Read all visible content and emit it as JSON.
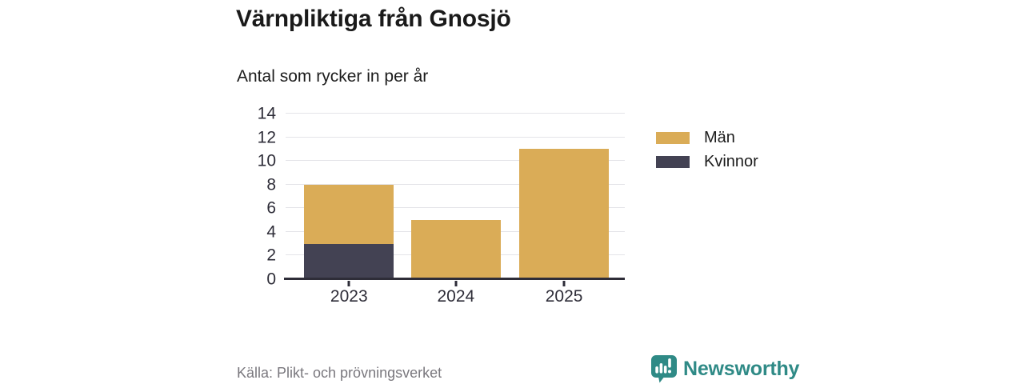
{
  "chart_data": {
    "type": "bar",
    "stacked": true,
    "title": "Värnpliktiga från Gnosjö",
    "subtitle": "Antal som rycker in per år",
    "categories": [
      "2023",
      "2024",
      "2025"
    ],
    "series": [
      {
        "name": "Män",
        "color": "#DAAC57",
        "values": [
          5,
          5,
          11
        ]
      },
      {
        "name": "Kvinnor",
        "color": "#434253",
        "values": [
          3,
          0,
          0
        ]
      }
    ],
    "stack_totals": [
      8,
      5,
      11
    ],
    "ylim": [
      0,
      14
    ],
    "yticks": [
      0,
      2,
      4,
      6,
      8,
      10,
      12,
      14
    ],
    "grid": true,
    "legend_position": "right",
    "axis_color": "#2E2D38",
    "grid_color": "#E4E4E8"
  },
  "footer": {
    "source": "Källa: Plikt- och prövningsverket",
    "brand": "Newsworthy",
    "brand_color": "#2F8A86",
    "logo_icon": "newsworthy-speech-bubble-bar-chart-icon"
  }
}
